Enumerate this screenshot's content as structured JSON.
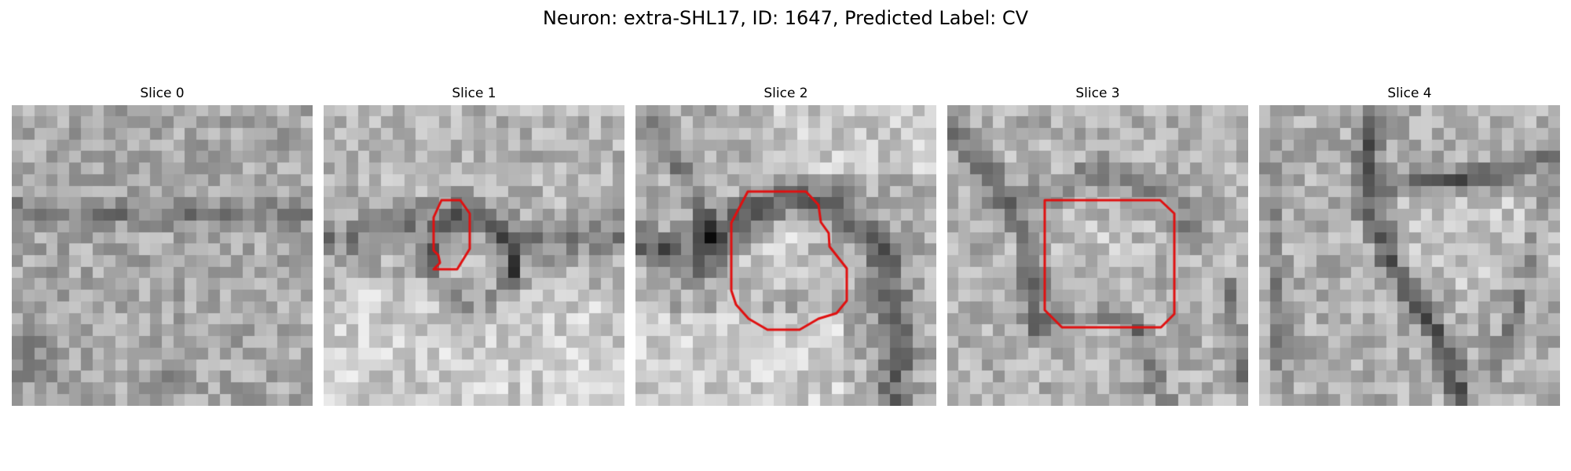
{
  "figure": {
    "title": "Neuron: extra-SHL17, ID: 1647, Predicted Label: CV"
  },
  "colors": {
    "background": "#ffffff",
    "text": "#000000",
    "contour": "#e01010",
    "colormap": "grayscale"
  },
  "panels": [
    {
      "label": "Slice 0",
      "has_contour": false,
      "content": "noisy grayscale micrograph, darker band at left and bottom"
    },
    {
      "label": "Slice 1",
      "has_contour": true,
      "content": "small circular structure outlined in red near center"
    },
    {
      "label": "Slice 2",
      "has_contour": true,
      "content": "bright vesicle outlined in red, dark membrane arc above"
    },
    {
      "label": "Slice 3",
      "has_contour": true,
      "content": "rounded bright region outlined in red, dark membranes at sides"
    },
    {
      "label": "Slice 4",
      "has_contour": false,
      "content": "dark membrane boundary forming a V / triangular shape"
    }
  ]
}
